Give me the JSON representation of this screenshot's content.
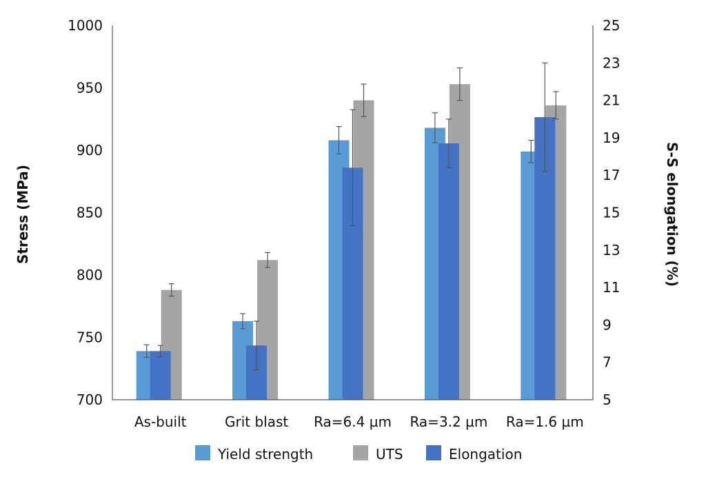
{
  "chart_data": {
    "type": "bar",
    "categories": [
      "As-built",
      "Grit blast",
      "Ra=6.4 µm",
      "Ra=3.2 µm",
      "Ra=1.6 µm"
    ],
    "series": [
      {
        "name": "Yield strength",
        "axis": "left",
        "color": "#5b9bd5",
        "values": [
          739,
          763,
          908,
          918,
          899
        ],
        "errors": [
          5,
          6,
          11,
          12,
          9
        ]
      },
      {
        "name": "UTS",
        "axis": "left",
        "color": "#a5a5a5",
        "values": [
          788,
          812,
          940,
          953,
          936
        ],
        "errors": [
          5,
          6,
          13,
          13,
          11
        ]
      },
      {
        "name": "Elongation",
        "axis": "right",
        "color": "#4472c4",
        "values": [
          7.6,
          7.9,
          17.4,
          18.7,
          20.1
        ],
        "errors": [
          0.3,
          1.3,
          3.1,
          1.3,
          2.9
        ]
      }
    ],
    "ylabel": "Stress (MPa)",
    "ylabel_right": "S-S elongation (%)",
    "ylim": [
      700,
      1000
    ],
    "yticks": [
      700,
      750,
      800,
      850,
      900,
      950,
      1000
    ],
    "ylim_right": [
      5,
      25
    ],
    "yticks_right": [
      5,
      7,
      9,
      11,
      13,
      15,
      17,
      19,
      21,
      23,
      25
    ],
    "grid": false,
    "legend_position": "bottom"
  }
}
